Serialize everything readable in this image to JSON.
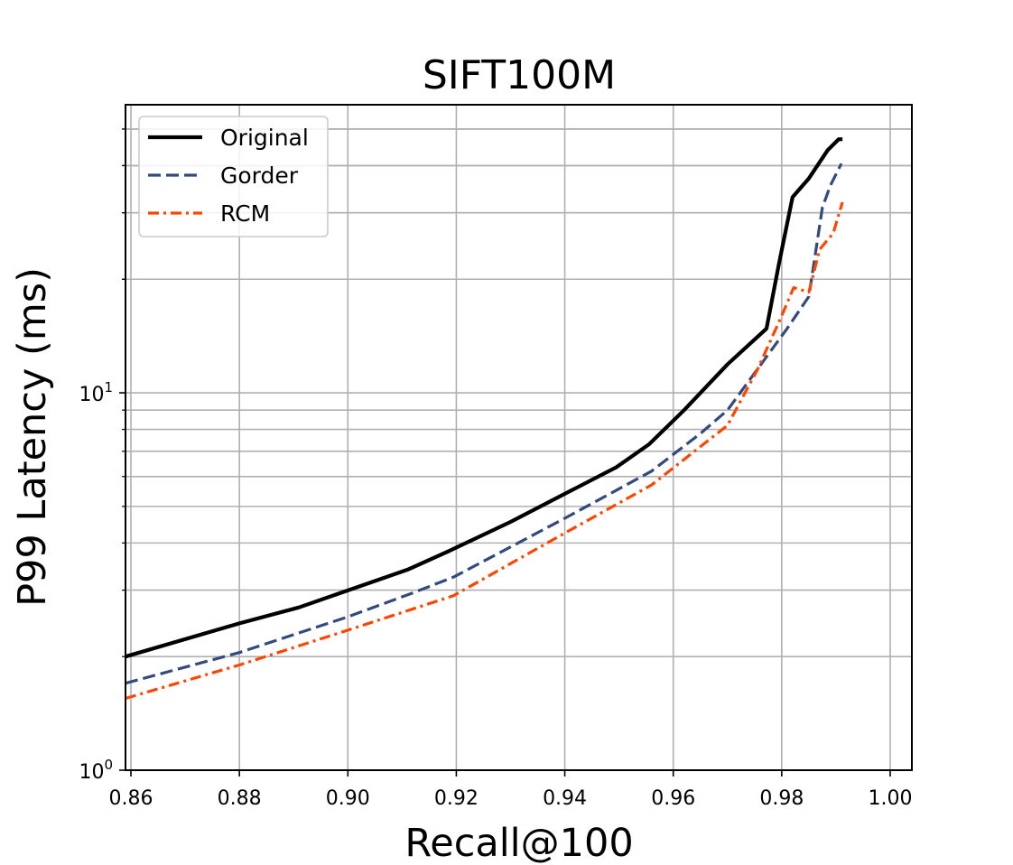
{
  "chart_data": {
    "type": "line",
    "title": "SIFT100M",
    "xlabel": "Recall@100",
    "ylabel": "P99 Latency (ms)",
    "xlim": [
      0.859,
      1.004
    ],
    "ylim": [
      1.0,
      58.0
    ],
    "yscale": "log",
    "grid": true,
    "legend_position": "top-left",
    "x_ticks": [
      "0.86",
      "0.88",
      "0.90",
      "0.92",
      "0.94",
      "0.96",
      "0.98",
      "1.00"
    ],
    "x_tick_values": [
      0.86,
      0.88,
      0.9,
      0.92,
      0.94,
      0.96,
      0.98,
      1.0
    ],
    "y_ticks": [
      {
        "base": "10",
        "exp": "0",
        "value": 1
      },
      {
        "base": "10",
        "exp": "1",
        "value": 10
      }
    ],
    "series": [
      {
        "name": "Original",
        "color": "#000000",
        "dash": "solid",
        "points": [
          [
            0.859,
            2.0
          ],
          [
            0.88,
            2.45
          ],
          [
            0.891,
            2.7
          ],
          [
            0.911,
            3.4
          ],
          [
            0.9185,
            3.8
          ],
          [
            0.93,
            4.55
          ],
          [
            0.94,
            5.4
          ],
          [
            0.9495,
            6.35
          ],
          [
            0.9555,
            7.3
          ],
          [
            0.962,
            9.0
          ],
          [
            0.97,
            11.9
          ],
          [
            0.9772,
            14.8
          ],
          [
            0.9795,
            22.0
          ],
          [
            0.982,
            33.0
          ],
          [
            0.985,
            37.0
          ],
          [
            0.9885,
            44.0
          ],
          [
            0.9905,
            47.0
          ],
          [
            0.9912,
            47.0
          ]
        ]
      },
      {
        "name": "Gorder",
        "color": "#334a7d",
        "dash": "dashed",
        "points": [
          [
            0.859,
            1.7
          ],
          [
            0.88,
            2.05
          ],
          [
            0.9,
            2.55
          ],
          [
            0.912,
            2.95
          ],
          [
            0.9195,
            3.25
          ],
          [
            0.94,
            4.65
          ],
          [
            0.956,
            6.2
          ],
          [
            0.965,
            7.8
          ],
          [
            0.97,
            9.0
          ],
          [
            0.976,
            11.8
          ],
          [
            0.981,
            14.8
          ],
          [
            0.985,
            18.0
          ],
          [
            0.9875,
            31.0
          ],
          [
            0.989,
            35.5
          ],
          [
            0.991,
            40.5
          ]
        ]
      },
      {
        "name": "RCM",
        "color": "#ff4500",
        "dash": "dashdot",
        "points": [
          [
            0.859,
            1.55
          ],
          [
            0.88,
            1.9
          ],
          [
            0.9,
            2.35
          ],
          [
            0.9195,
            2.9
          ],
          [
            0.94,
            4.25
          ],
          [
            0.956,
            5.7
          ],
          [
            0.97,
            8.2
          ],
          [
            0.9755,
            11.5
          ],
          [
            0.98,
            16.0
          ],
          [
            0.9822,
            19.0
          ],
          [
            0.985,
            18.5
          ],
          [
            0.987,
            24.0
          ],
          [
            0.9895,
            26.5
          ],
          [
            0.9912,
            32.0
          ]
        ]
      }
    ]
  }
}
